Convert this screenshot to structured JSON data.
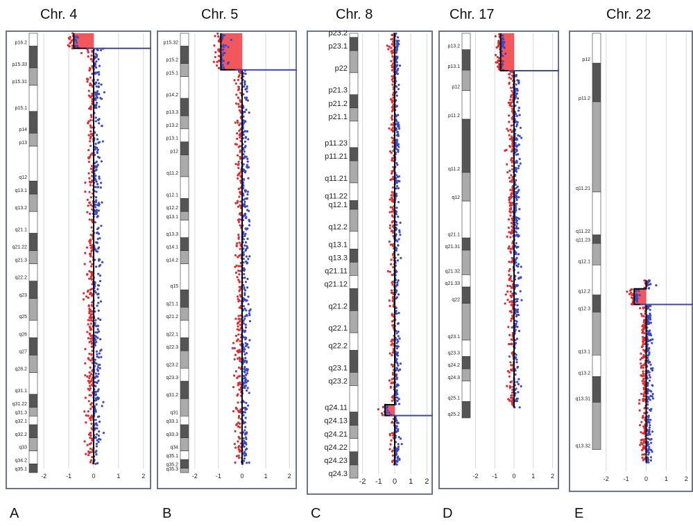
{
  "chart_data": [
    {
      "type": "scatter",
      "panel_label": "A",
      "title": "Chr. 4",
      "xlim": [
        -2.2,
        2.2
      ],
      "x_ticks": [
        "-2",
        "-1",
        "0",
        "1",
        "2"
      ],
      "bands": [
        "p16.2",
        "p15.33",
        "p15.31",
        "p15.1",
        "p14",
        "p13",
        "q12",
        "q13.1",
        "q13.2",
        "q21.1",
        "q21.22",
        "q21.3",
        "q22.2",
        "q23",
        "q25",
        "q26",
        "q27",
        "q28.2",
        "q31.1",
        "q31.22",
        "q31.3",
        "q32.1",
        "q32.2",
        "q33",
        "q34.2",
        "q35.1"
      ],
      "bands_pos": [
        0.02,
        0.07,
        0.11,
        0.17,
        0.22,
        0.25,
        0.33,
        0.36,
        0.4,
        0.45,
        0.49,
        0.52,
        0.56,
        0.6,
        0.65,
        0.69,
        0.73,
        0.77,
        0.82,
        0.85,
        0.87,
        0.89,
        0.92,
        0.95,
        0.98,
        1.0
      ],
      "segments": [
        {
          "from": 0.0,
          "to": 0.035,
          "log2": -0.8,
          "call": "loss"
        },
        {
          "from": 0.035,
          "to": 1.0,
          "log2": 0.0,
          "call": "normal"
        }
      ],
      "breakpoints": [
        0.035
      ]
    },
    {
      "type": "scatter",
      "panel_label": "B",
      "title": "Chr. 5",
      "xlim": [
        -2.2,
        2.2
      ],
      "x_ticks": [
        "-2",
        "-1",
        "0",
        "1",
        "2"
      ],
      "bands": [
        "p15.32",
        "p15.2",
        "p15.1",
        "p14.2",
        "p13.3",
        "p13.2",
        "p13.1",
        "p12",
        "q11.2",
        "q12.1",
        "q12.2",
        "q13.1",
        "q13.3",
        "q14.1",
        "q14.2",
        "q15",
        "q21.1",
        "q21.2",
        "q22.1",
        "q22.3",
        "q23.2",
        "q23.3",
        "q31.2",
        "q31",
        "q33.1",
        "q33.3",
        "q34",
        "q35.1",
        "q35.2",
        "q35.3"
      ],
      "bands_pos": [
        0.02,
        0.06,
        0.09,
        0.14,
        0.18,
        0.21,
        0.24,
        0.27,
        0.32,
        0.37,
        0.4,
        0.42,
        0.46,
        0.49,
        0.52,
        0.58,
        0.62,
        0.65,
        0.69,
        0.72,
        0.76,
        0.79,
        0.83,
        0.87,
        0.89,
        0.92,
        0.95,
        0.97,
        0.99,
        1.0
      ],
      "segments": [
        {
          "from": 0.0,
          "to": 0.085,
          "log2": -0.9,
          "call": "loss"
        },
        {
          "from": 0.085,
          "to": 1.0,
          "log2": 0.0,
          "call": "normal"
        }
      ],
      "breakpoints": [
        0.085
      ]
    },
    {
      "type": "scatter",
      "panel_label": "C",
      "title": "Chr. 8",
      "xlim": [
        -2.2,
        2.2
      ],
      "x_ticks": [
        "-2",
        "-1",
        "0",
        "1",
        "2"
      ],
      "bands": [
        "p23.2",
        "p23.1",
        "p22",
        "p21.3",
        "p21.2",
        "p21.1",
        "p11.23",
        "p11.21",
        "q11.21",
        "q11.22",
        "q12.1",
        "q12.2",
        "q13.1",
        "q13.3",
        "q21.11",
        "q21.12",
        "q21.2",
        "q22.1",
        "q22.2",
        "q23.1",
        "q23.2",
        "q24.11",
        "q24.13",
        "q24.21",
        "q24.22",
        "q24.23",
        "q24.3"
      ],
      "bands_pos": [
        0.0,
        0.03,
        0.08,
        0.13,
        0.16,
        0.19,
        0.25,
        0.28,
        0.33,
        0.37,
        0.39,
        0.44,
        0.48,
        0.51,
        0.54,
        0.57,
        0.62,
        0.67,
        0.71,
        0.76,
        0.79,
        0.85,
        0.88,
        0.91,
        0.94,
        0.97,
        1.0
      ],
      "segments": [
        {
          "from": 0.0,
          "to": 0.86,
          "log2": 0.0,
          "call": "normal"
        },
        {
          "from": 0.86,
          "to": 0.885,
          "log2": -0.6,
          "call": "loss"
        },
        {
          "from": 0.885,
          "to": 1.0,
          "log2": 0.0,
          "call": "normal"
        }
      ],
      "breakpoints": [
        0.885
      ]
    },
    {
      "type": "scatter",
      "panel_label": "D",
      "title": "Chr. 17",
      "xlim": [
        -2.2,
        2.2
      ],
      "x_ticks": [
        "-2",
        "-1",
        "0",
        "1",
        "2"
      ],
      "bands": [
        "p13.2",
        "p13.1",
        "p12",
        "p11.2",
        "q11.2",
        "q12",
        "q21.1",
        "q21.31",
        "q21.32",
        "q21.33",
        "q22",
        "q23.1",
        "q23.3",
        "q24.2",
        "q24.3",
        "q25.1",
        "q25.2"
      ],
      "bands_pos": [
        0.03,
        0.08,
        0.13,
        0.2,
        0.33,
        0.4,
        0.49,
        0.52,
        0.58,
        0.61,
        0.65,
        0.74,
        0.78,
        0.81,
        0.84,
        0.89,
        0.93
      ],
      "segments": [
        {
          "from": 0.0,
          "to": 0.1,
          "log2": -0.7,
          "call": "loss"
        },
        {
          "from": 0.1,
          "to": 1.0,
          "log2": 0.0,
          "call": "normal"
        }
      ],
      "breakpoints": [
        0.1
      ]
    },
    {
      "type": "scatter",
      "panel_label": "E",
      "title": "Chr. 22",
      "xlim": [
        -2.2,
        2.2
      ],
      "x_ticks": [
        "-2",
        "-1",
        "0",
        "1",
        "2"
      ],
      "bands": [
        "p12",
        "p11.2",
        "q11.21",
        "q11.22",
        "q11.23",
        "q12.1",
        "q12.2",
        "q12.3",
        "q13.1",
        "q13.2",
        "q13.31",
        "q13.32"
      ],
      "bands_pos": [
        0.06,
        0.15,
        0.36,
        0.46,
        0.48,
        0.53,
        0.6,
        0.64,
        0.74,
        0.79,
        0.85,
        0.96
      ],
      "segments": [
        {
          "from": 0.36,
          "to": 0.39,
          "log2": 0.0,
          "call": "normal"
        },
        {
          "from": 0.39,
          "to": 0.445,
          "log2": -0.6,
          "call": "loss"
        },
        {
          "from": 0.445,
          "to": 1.0,
          "log2": 0.0,
          "call": "normal"
        }
      ],
      "breakpoints": [
        0.445
      ]
    }
  ]
}
